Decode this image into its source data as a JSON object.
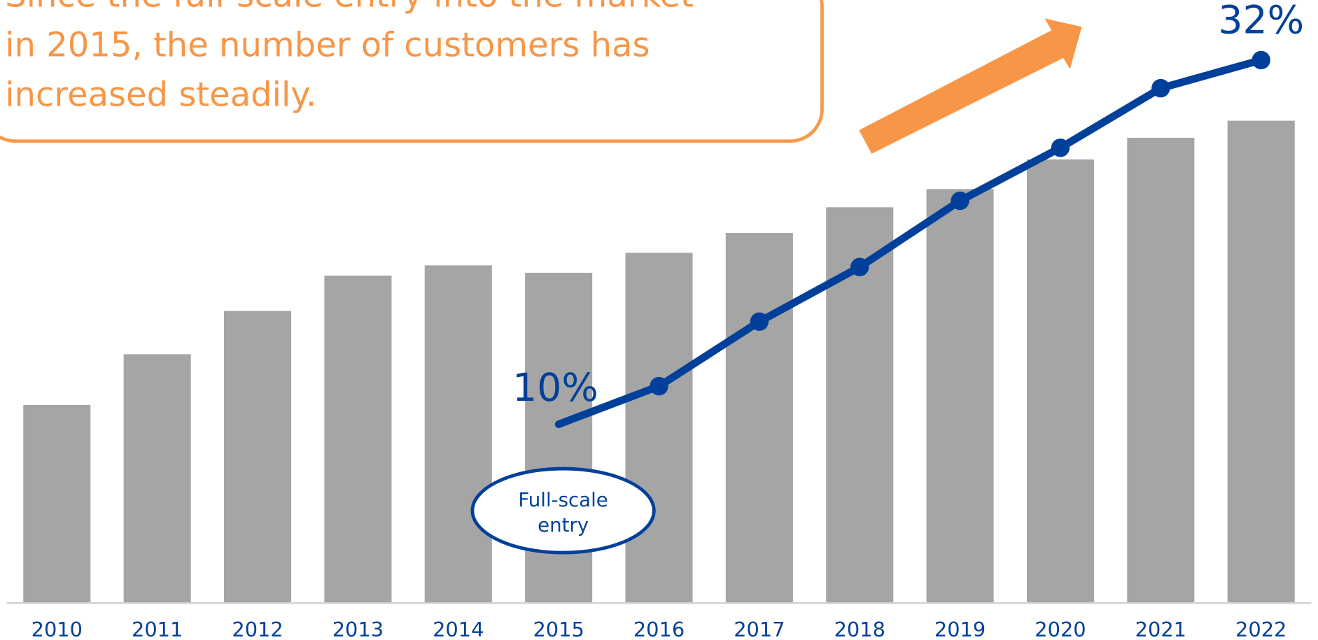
{
  "chart_data": {
    "type": "bar",
    "title_lines": [
      "Since the full-scale entry into the market",
      "in 2015, the number of customers has",
      "increased steadily."
    ],
    "annotation_lines": [
      "Full-scale",
      "entry"
    ],
    "categories": [
      "2010",
      "2011",
      "2012",
      "2013",
      "2014",
      "2015",
      "2016",
      "2017",
      "2018",
      "2019",
      "2020",
      "2021",
      "2022"
    ],
    "ylim": [
      0,
      100
    ],
    "y2lim": [
      -0.8,
      33.6
    ],
    "series": [
      {
        "type": "bar",
        "color": "#a5a5a5",
        "values": [
          34.8,
          43.7,
          51.3,
          57.5,
          59.3,
          58.0,
          61.5,
          65.0,
          69.5,
          72.7,
          77.9,
          81.7,
          84.7
        ]
      },
      {
        "type": "line",
        "axis": "y2",
        "color": "#00409a",
        "values": [
          null,
          null,
          null,
          null,
          null,
          10,
          12.3,
          16.2,
          19.5,
          23.5,
          26.7,
          30.3,
          32
        ],
        "value_labels": [
          null,
          null,
          null,
          null,
          null,
          "10%",
          null,
          null,
          null,
          null,
          null,
          null,
          "32%"
        ]
      }
    ]
  }
}
